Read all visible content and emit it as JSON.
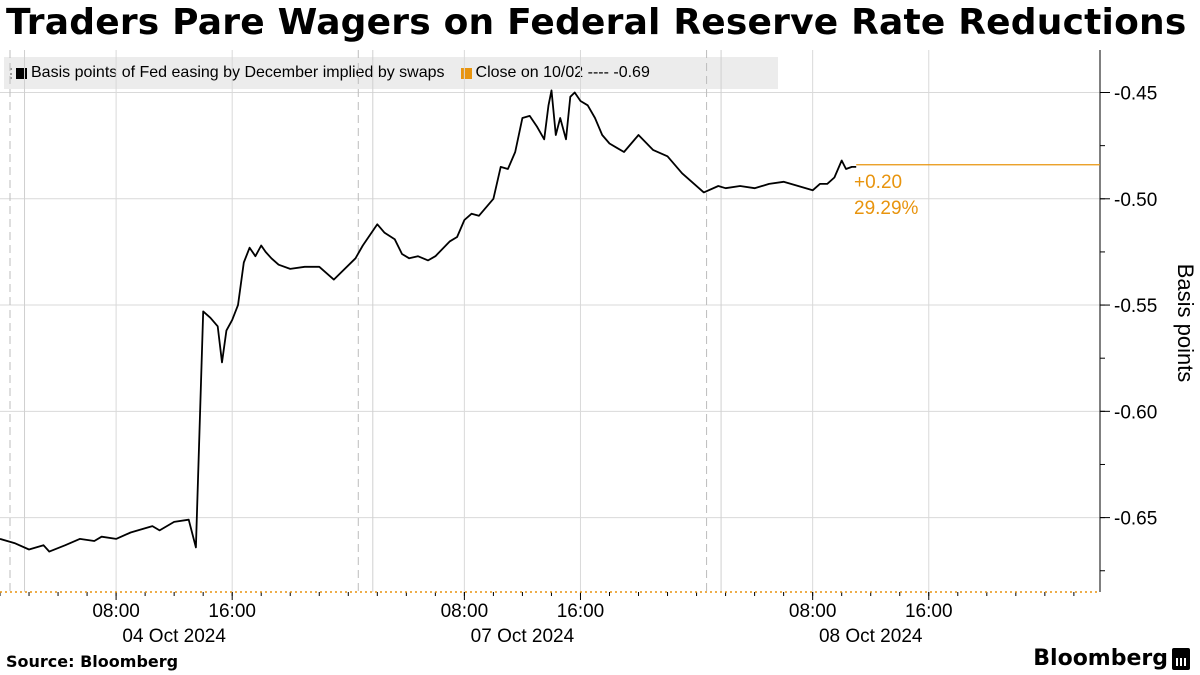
{
  "chart_data": {
    "type": "line",
    "title": "Traders Pare Wagers on Federal Reserve Rate Reductions",
    "ylabel": "Basis points",
    "ylim": [
      -0.685,
      -0.43
    ],
    "yticks": [
      -0.45,
      -0.5,
      -0.55,
      -0.6,
      -0.65
    ],
    "ytick_labels": [
      "-0.45",
      "-0.50",
      "-0.55",
      "-0.60",
      "-0.65"
    ],
    "x_axis": {
      "range_hours": [
        0,
        75.8
      ],
      "major_ticks": [
        {
          "hour": 8,
          "label": "08:00"
        },
        {
          "hour": 16,
          "label": "16:00"
        },
        {
          "hour": 32,
          "label": "08:00"
        },
        {
          "hour": 40,
          "label": "16:00"
        },
        {
          "hour": 56,
          "label": "08:00"
        },
        {
          "hour": 64,
          "label": "16:00"
        }
      ],
      "date_labels": [
        {
          "hour": 12,
          "label": "04 Oct 2024"
        },
        {
          "hour": 36,
          "label": "07 Oct 2024"
        },
        {
          "hour": 60,
          "label": "08 Oct 2024"
        }
      ],
      "session_breaks_dashed": [
        0,
        24,
        48
      ],
      "session_starts_solid": [
        1,
        25,
        49
      ]
    },
    "grid": true,
    "legend_position": "top-left",
    "series": [
      {
        "name": "Basis points of Fed easing by December implied by swaps",
        "color": "#000000",
        "x": [
          0,
          1,
          2,
          3,
          3.4,
          4.5,
          5.5,
          6.5,
          7,
          8,
          9,
          10,
          10.5,
          11,
          12,
          13,
          13.5,
          14,
          14.5,
          15,
          15.3,
          15.6,
          16,
          16.4,
          16.8,
          17.2,
          17.6,
          18,
          18.3,
          18.7,
          19.2,
          20,
          21,
          22,
          23,
          24.5,
          25,
          26,
          26.5,
          27.2,
          27.7,
          28.2,
          28.8,
          29.5,
          30,
          31,
          31.5,
          32,
          32.5,
          33,
          34,
          34.5,
          35,
          35.5,
          36,
          36.5,
          37,
          37.5,
          37.8,
          38,
          38.3,
          38.6,
          39,
          39.3,
          39.6,
          40,
          40.5,
          41,
          41.5,
          42,
          42.5,
          43,
          44,
          45,
          46,
          47,
          48.5,
          49.5,
          50,
          51,
          52,
          53,
          54,
          55,
          56,
          56.5,
          57,
          57.5,
          58,
          58.3,
          58.7,
          59
        ],
        "y": [
          -0.66,
          -0.662,
          -0.665,
          -0.663,
          -0.666,
          -0.663,
          -0.66,
          -0.661,
          -0.659,
          -0.66,
          -0.657,
          -0.655,
          -0.654,
          -0.656,
          -0.652,
          -0.651,
          -0.664,
          -0.553,
          -0.556,
          -0.56,
          -0.577,
          -0.562,
          -0.557,
          -0.55,
          -0.53,
          -0.523,
          -0.527,
          -0.522,
          -0.525,
          -0.528,
          -0.531,
          -0.533,
          -0.532,
          -0.532,
          -0.538,
          -0.528,
          -0.522,
          -0.512,
          -0.516,
          -0.519,
          -0.526,
          -0.528,
          -0.527,
          -0.529,
          -0.527,
          -0.52,
          -0.518,
          -0.51,
          -0.507,
          -0.508,
          -0.5,
          -0.485,
          -0.486,
          -0.478,
          -0.462,
          -0.461,
          -0.466,
          -0.472,
          -0.456,
          -0.449,
          -0.47,
          -0.462,
          -0.472,
          -0.452,
          -0.45,
          -0.454,
          -0.456,
          -0.462,
          -0.47,
          -0.474,
          -0.476,
          -0.478,
          -0.47,
          -0.477,
          -0.48,
          -0.488,
          -0.497,
          -0.494,
          -0.495,
          -0.494,
          -0.495,
          -0.493,
          -0.492,
          -0.494,
          -0.496,
          -0.493,
          -0.493,
          -0.49,
          -0.482,
          -0.486,
          -0.485,
          -0.485
        ]
      },
      {
        "name": "Close on 10/02 ---- -0.69",
        "color": "#e8940e",
        "value": -0.69
      }
    ],
    "reference_line": {
      "y": -0.484,
      "color": "#e8940e"
    },
    "annotations": [
      {
        "text": "+0.20",
        "color": "#e8940e"
      },
      {
        "text": "29.29%",
        "color": "#e8940e"
      }
    ]
  },
  "source": "Source: Bloomberg",
  "brand": "Bloomberg",
  "colors": {
    "accent": "#e8940e",
    "legend_bg": "#ececec",
    "grid": "#d9d9d9"
  }
}
